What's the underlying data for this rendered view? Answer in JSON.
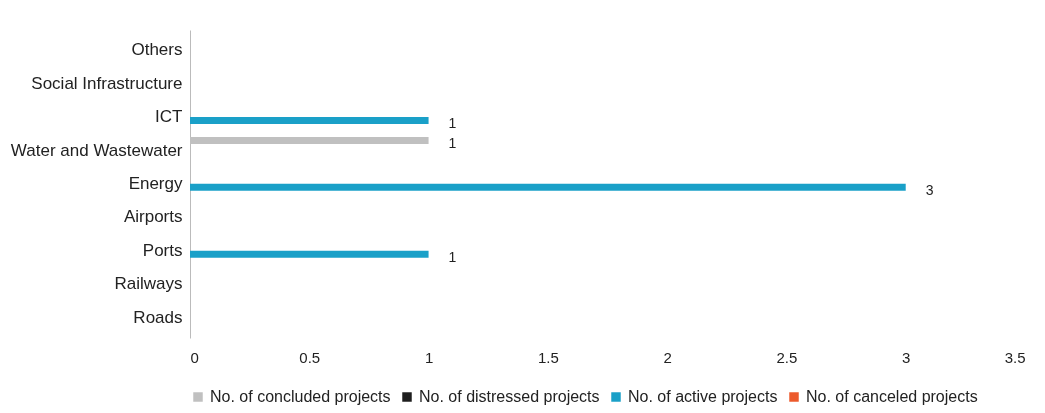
{
  "chart_data": {
    "type": "bar",
    "orientation": "horizontal",
    "categories": [
      "Others",
      "Social Infrastructure",
      "ICT",
      "Water and Wastewater",
      "Energy",
      "Airports",
      "Ports",
      "Railways",
      "Roads"
    ],
    "series": [
      {
        "name": "No. of concluded projects",
        "color": "#c0c0c0",
        "values": [
          0,
          0,
          0,
          1,
          0,
          0,
          0,
          0,
          0
        ],
        "value_labels": [
          null,
          null,
          null,
          "1",
          null,
          null,
          null,
          null,
          null
        ]
      },
      {
        "name": "No. of distressed projects",
        "color": "#1e1e1e",
        "values": [
          0,
          0,
          0,
          0,
          0,
          0,
          0,
          0,
          0
        ]
      },
      {
        "name": "No. of active projects",
        "color": "#1aa0c8",
        "values": [
          0,
          0,
          1,
          0,
          3,
          0,
          1,
          0,
          0
        ],
        "value_labels": [
          null,
          null,
          "1",
          null,
          "3",
          null,
          "1",
          null,
          null
        ]
      },
      {
        "name": "No. of canceled projects",
        "color": "#ec5a2c",
        "values": [
          0,
          0,
          0,
          0,
          0,
          0,
          0,
          0,
          0
        ]
      }
    ],
    "xlim": [
      0,
      3.5
    ],
    "xticks": [
      0,
      0.5,
      1,
      1.5,
      2,
      2.5,
      3,
      3.5
    ],
    "legend": "bottom"
  }
}
